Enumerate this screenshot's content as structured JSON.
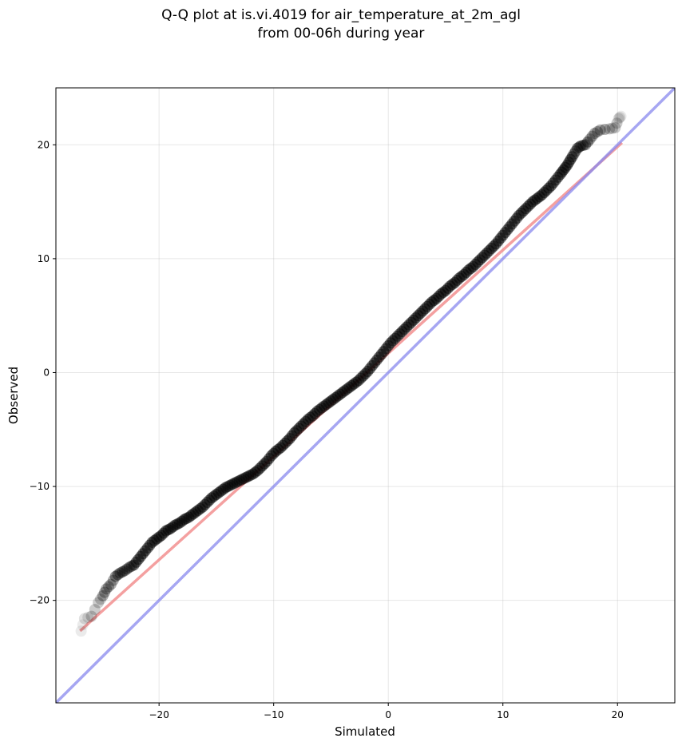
{
  "chart_data": {
    "type": "scatter",
    "title": "Q-Q plot at is.vi.4019 for air_temperature_at_2m_agl",
    "subtitle": "from 00-06h during year",
    "xlabel": "Simulated",
    "ylabel": "Observed",
    "xlim": [
      -29,
      25
    ],
    "ylim": [
      -29,
      25
    ],
    "x_ticks": [
      -20,
      -10,
      0,
      10,
      20
    ],
    "y_ticks": [
      -20,
      -10,
      0,
      10,
      20
    ],
    "x_tick_labels": [
      "−20",
      "−10",
      "0",
      "10",
      "20"
    ],
    "y_tick_labels": [
      "−20",
      "−10",
      "0",
      "10",
      "20"
    ],
    "grid": true,
    "series": [
      {
        "role": "quantiles",
        "color": "#000000",
        "marker": "circle",
        "x": [
          -26.8,
          -26.5,
          -25.9,
          -25.3,
          -24.9,
          -24.6,
          -24.2,
          -23.8,
          -23.4,
          -23.0,
          -22.6,
          -22.2,
          -21.8,
          -21.4,
          -21.0,
          -20.6,
          -20.2,
          -19.8,
          -19.4,
          -19.0,
          -18.6,
          -18.2,
          -17.8,
          -17.4,
          -17.0,
          -16.6,
          -16.2,
          -15.8,
          -15.4,
          -15.0,
          -14.6,
          -14.2,
          -13.8,
          -13.4,
          -13.0,
          -12.6,
          -12.2,
          -11.8,
          -11.4,
          -11.0,
          -10.6,
          -10.2,
          -9.8,
          -9.4,
          -9.0,
          -8.6,
          -8.2,
          -7.8,
          -7.4,
          -7.0,
          -6.6,
          -6.2,
          -5.8,
          -5.4,
          -5.0,
          -4.6,
          -4.2,
          -3.8,
          -3.4,
          -3.0,
          -2.6,
          -2.2,
          -1.8,
          -1.4,
          -1.0,
          -0.6,
          -0.2,
          0.2,
          0.6,
          1.0,
          1.4,
          1.8,
          2.2,
          2.6,
          3.0,
          3.4,
          3.8,
          4.2,
          4.6,
          5.0,
          5.4,
          5.8,
          6.2,
          6.6,
          7.0,
          7.4,
          7.8,
          8.2,
          8.6,
          9.0,
          9.4,
          9.8,
          10.2,
          10.6,
          11.0,
          11.4,
          11.8,
          12.2,
          12.6,
          13.0,
          13.4,
          13.8,
          14.2,
          14.6,
          15.0,
          15.3,
          15.6,
          15.9,
          16.2,
          16.5,
          16.8,
          17.2,
          17.6,
          18.0,
          18.5,
          19.3,
          19.8,
          20.1,
          20.3
        ],
        "y": [
          -22.7,
          -21.6,
          -21.4,
          -20.2,
          -19.6,
          -19.0,
          -18.6,
          -17.9,
          -17.6,
          -17.4,
          -17.1,
          -16.9,
          -16.4,
          -15.9,
          -15.4,
          -14.9,
          -14.6,
          -14.3,
          -13.9,
          -13.7,
          -13.4,
          -13.2,
          -12.9,
          -12.7,
          -12.4,
          -12.1,
          -11.8,
          -11.4,
          -11.0,
          -10.7,
          -10.4,
          -10.1,
          -9.9,
          -9.7,
          -9.5,
          -9.3,
          -9.1,
          -8.9,
          -8.6,
          -8.2,
          -7.8,
          -7.3,
          -6.9,
          -6.6,
          -6.2,
          -5.8,
          -5.3,
          -4.9,
          -4.5,
          -4.1,
          -3.8,
          -3.4,
          -3.1,
          -2.8,
          -2.5,
          -2.2,
          -1.9,
          -1.6,
          -1.3,
          -1.0,
          -0.7,
          -0.3,
          0.1,
          0.6,
          1.1,
          1.6,
          2.1,
          2.6,
          3.0,
          3.4,
          3.8,
          4.2,
          4.6,
          5.0,
          5.4,
          5.8,
          6.2,
          6.5,
          6.9,
          7.2,
          7.6,
          7.9,
          8.3,
          8.6,
          9.0,
          9.3,
          9.7,
          10.1,
          10.5,
          10.9,
          11.3,
          11.8,
          12.3,
          12.8,
          13.3,
          13.8,
          14.2,
          14.6,
          15.0,
          15.3,
          15.6,
          16.0,
          16.4,
          16.9,
          17.4,
          17.8,
          18.2,
          18.7,
          19.2,
          19.7,
          19.9,
          20.0,
          20.5,
          21.0,
          21.3,
          21.4,
          21.5,
          22.3,
          22.5
        ]
      },
      {
        "role": "fit-line",
        "color": "#f08080",
        "x": [
          -26.8,
          20.3
        ],
        "y": [
          -22.6,
          20.1
        ]
      },
      {
        "role": "one-to-one",
        "color": "#8888ee",
        "x": [
          -29,
          25
        ],
        "y": [
          -29,
          25
        ]
      }
    ]
  }
}
